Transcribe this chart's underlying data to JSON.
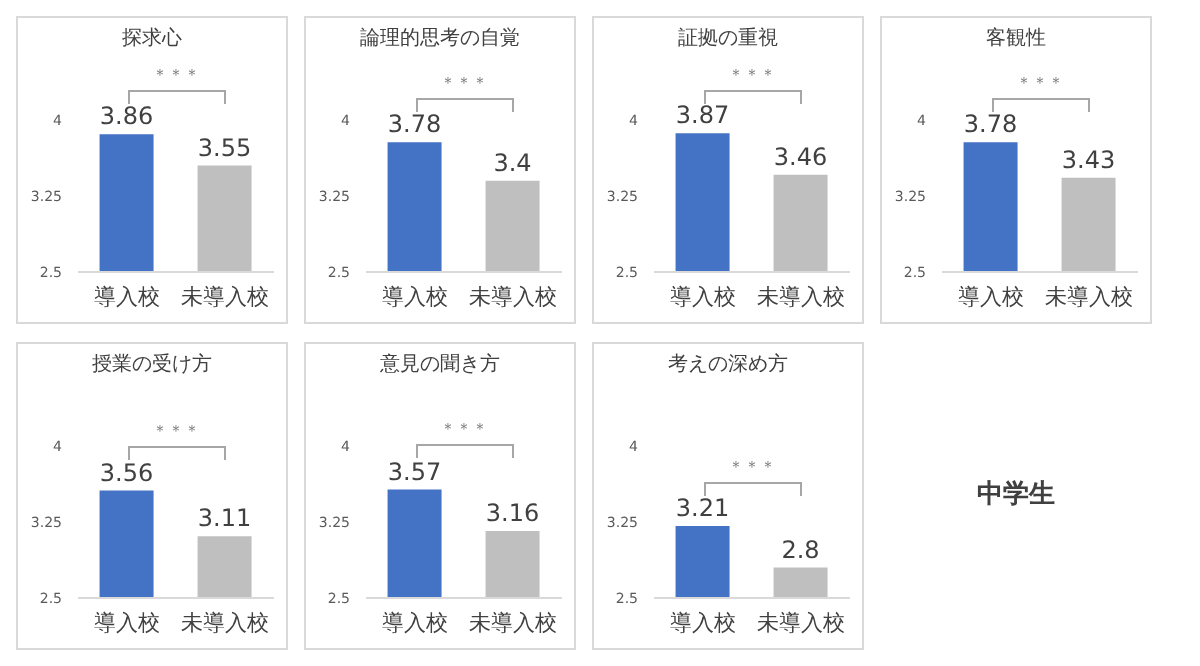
{
  "chart_data": [
    {
      "type": "bar",
      "title": "探求心",
      "categories": [
        "導入校",
        "未導入校"
      ],
      "values": [
        3.86,
        3.55
      ],
      "colors": [
        "#4472c4",
        "#bfbfbf"
      ],
      "ylim": [
        2.5,
        4
      ],
      "yticks": [
        2.5,
        3.25,
        4
      ],
      "data_labels": true,
      "annotations": [
        "＊＊＊"
      ]
    },
    {
      "type": "bar",
      "title": "論理的思考の自覚",
      "categories": [
        "導入校",
        "未導入校"
      ],
      "values": [
        3.78,
        3.4
      ],
      "colors": [
        "#4472c4",
        "#bfbfbf"
      ],
      "ylim": [
        2.5,
        4
      ],
      "yticks": [
        2.5,
        3.25,
        4
      ],
      "data_labels": true,
      "annotations": [
        "＊＊＊"
      ]
    },
    {
      "type": "bar",
      "title": "証拠の重視",
      "categories": [
        "導入校",
        "未導入校"
      ],
      "values": [
        3.87,
        3.46
      ],
      "colors": [
        "#4472c4",
        "#bfbfbf"
      ],
      "ylim": [
        2.5,
        4
      ],
      "yticks": [
        2.5,
        3.25,
        4
      ],
      "data_labels": true,
      "annotations": [
        "＊＊＊"
      ]
    },
    {
      "type": "bar",
      "title": "客観性",
      "categories": [
        "導入校",
        "未導入校"
      ],
      "values": [
        3.78,
        3.43
      ],
      "colors": [
        "#4472c4",
        "#bfbfbf"
      ],
      "ylim": [
        2.5,
        4
      ],
      "yticks": [
        2.5,
        3.25,
        4
      ],
      "data_labels": true,
      "annotations": [
        "＊＊＊"
      ]
    },
    {
      "type": "bar",
      "title": "授業の受け方",
      "categories": [
        "導入校",
        "未導入校"
      ],
      "values": [
        3.56,
        3.11
      ],
      "colors": [
        "#4472c4",
        "#bfbfbf"
      ],
      "ylim": [
        2.5,
        4
      ],
      "yticks": [
        2.5,
        3.25,
        4
      ],
      "data_labels": true,
      "annotations": [
        "＊＊＊"
      ]
    },
    {
      "type": "bar",
      "title": "意見の聞き方",
      "categories": [
        "導入校",
        "未導入校"
      ],
      "values": [
        3.57,
        3.16
      ],
      "colors": [
        "#4472c4",
        "#bfbfbf"
      ],
      "ylim": [
        2.5,
        4
      ],
      "yticks": [
        2.5,
        3.25,
        4
      ],
      "data_labels": true,
      "annotations": [
        "＊＊＊"
      ]
    },
    {
      "type": "bar",
      "title": "考えの深め方",
      "categories": [
        "導入校",
        "未導入校"
      ],
      "values": [
        3.21,
        2.8
      ],
      "colors": [
        "#4472c4",
        "#bfbfbf"
      ],
      "ylim": [
        2.5,
        4
      ],
      "yticks": [
        2.5,
        3.25,
        4
      ],
      "data_labels": true,
      "annotations": [
        "＊＊＊"
      ]
    },
    {
      "type": "other",
      "title": "中学生"
    }
  ]
}
